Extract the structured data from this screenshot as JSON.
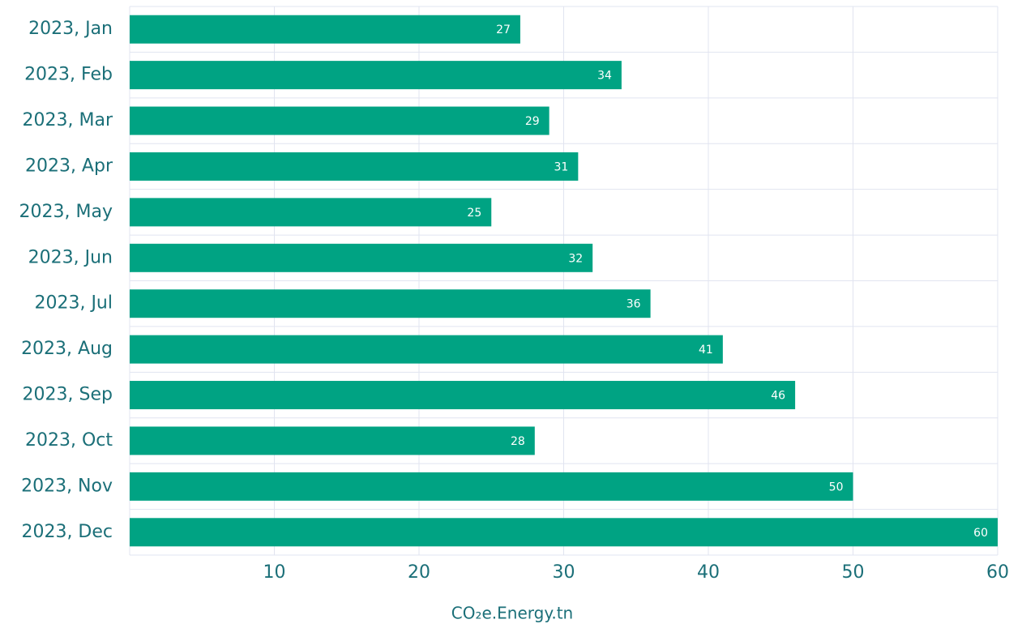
{
  "chart_data": {
    "type": "hbar",
    "categories": [
      "2023, Jan",
      "2023, Feb",
      "2023, Mar",
      "2023, Apr",
      "2023, May",
      "2023, Jun",
      "2023, Jul",
      "2023, Aug",
      "2023, Sep",
      "2023, Oct",
      "2023, Nov",
      "2023, Dec"
    ],
    "values": [
      27,
      34,
      29,
      31,
      25,
      32,
      36,
      41,
      46,
      28,
      50,
      60
    ],
    "color": "#00a383",
    "xlabel": "CO₂e.Energy.tn",
    "xlim": [
      0,
      60
    ],
    "xticks": [
      10,
      20,
      30,
      40,
      50,
      60
    ],
    "grid": true
  }
}
